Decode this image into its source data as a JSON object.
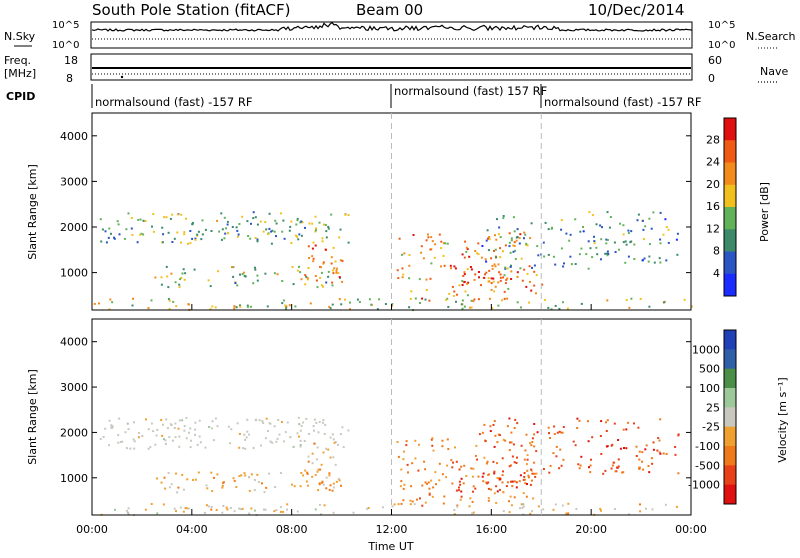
{
  "header": {
    "station": "South Pole Station (fitACF)",
    "beam": "Beam 00",
    "date": "10/Dec/2014"
  },
  "status_panels": {
    "nsky": {
      "label": "N.Sky",
      "ticks": [
        "10^5",
        "10^0"
      ]
    },
    "nsearch": {
      "label": "N.Search",
      "ticks": [
        "10^5",
        "10^0"
      ]
    },
    "freq": {
      "label_line1": "Freq.",
      "label_line2": "[MHz]",
      "ticks": [
        "18",
        "8"
      ]
    },
    "nave": {
      "label": "Nave",
      "ticks": [
        "60",
        "0"
      ]
    },
    "cpid": {
      "label": "CPID",
      "segments": [
        {
          "text": "normalsound (fast) -157 RF",
          "start_hour": 0
        },
        {
          "text": "normalsound (fast) 157 RF",
          "start_hour": 12
        },
        {
          "text": "normalsound (fast) -157 RF",
          "start_hour": 18
        }
      ]
    }
  },
  "x_axis": {
    "label": "Time UT",
    "tick_labels": [
      "00:00",
      "04:00",
      "08:00",
      "12:00",
      "16:00",
      "20:00",
      "00:00"
    ],
    "tick_hours": [
      0,
      4,
      8,
      12,
      16,
      20,
      24
    ]
  },
  "panels": {
    "power": {
      "ylabel": "Slant Range [km]",
      "yticks": [
        "1000",
        "2000",
        "3000",
        "4000"
      ],
      "ytick_values": [
        1000,
        2000,
        3000,
        4000
      ],
      "colorbar_label": "Power [dB]",
      "colorbar_ticks": [
        "4",
        "8",
        "12",
        "16",
        "20",
        "24",
        "28"
      ]
    },
    "velocity": {
      "ylabel": "Slant Range [km]",
      "yticks": [
        "1000",
        "2000",
        "3000",
        "4000"
      ],
      "ytick_values": [
        1000,
        2000,
        3000,
        4000
      ],
      "colorbar_label": "Velocity [m s⁻¹]",
      "colorbar_ticks": [
        "1000",
        "500",
        "100",
        "25",
        "-25",
        "-100",
        "-500",
        "-1000"
      ]
    }
  },
  "colors": {
    "power_scale": [
      "#1a2cff",
      "#2a56c4",
      "#3c8a6a",
      "#62b25a",
      "#f2c01e",
      "#f28a1c",
      "#f05a14",
      "#e01010"
    ],
    "velocity_scale": [
      "#2040b8",
      "#2f5fa8",
      "#4a8e48",
      "#9cc89a",
      "#c8c8c0",
      "#f0a030",
      "#f07a1a",
      "#e84018",
      "#e01010"
    ],
    "gray_scatter": "#c8c8c0"
  },
  "chart_data": {
    "type": "heatmap",
    "x_range_hours": [
      0,
      24
    ],
    "y_range_km": [
      180,
      4500
    ],
    "power_db_range": [
      0,
      30
    ],
    "velocity_range": [
      -1000,
      1000
    ],
    "echo_regions": [
      {
        "t0": 0.3,
        "t1": 10.3,
        "r0": 1650,
        "r1": 2350,
        "power_db": 12,
        "velocity": 0,
        "density": 0.55
      },
      {
        "t0": 2.5,
        "t1": 10.0,
        "r0": 700,
        "r1": 1150,
        "power_db": 14,
        "velocity": -200,
        "density": 0.45
      },
      {
        "t0": 8.5,
        "t1": 10.0,
        "r0": 800,
        "r1": 1800,
        "power_db": 22,
        "velocity": -250,
        "density": 0.55
      },
      {
        "t0": 12.2,
        "t1": 17.8,
        "r0": 400,
        "r1": 1900,
        "power_db": 20,
        "velocity": -400,
        "density": 0.4
      },
      {
        "t0": 14.5,
        "t1": 18.0,
        "r0": 700,
        "r1": 1150,
        "power_db": 26,
        "velocity": -700,
        "density": 0.55
      },
      {
        "t0": 15.5,
        "t1": 23.5,
        "r0": 1100,
        "r1": 2350,
        "power_db": 10,
        "velocity": -600,
        "density": 0.35
      },
      {
        "t0": 0.0,
        "t1": 24.0,
        "r0": 200,
        "r1": 450,
        "power_db": 14,
        "velocity": -100,
        "density": 0.4
      }
    ]
  }
}
